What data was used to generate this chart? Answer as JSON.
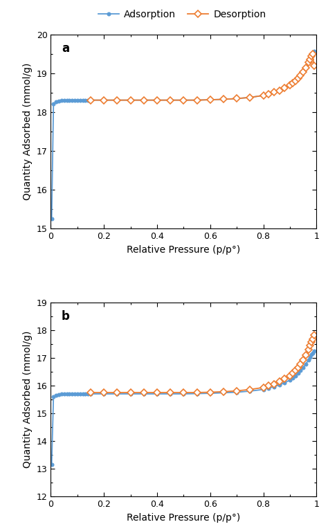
{
  "legend_labels": [
    "Adsorption",
    "Desorption"
  ],
  "adsorption_color": "#5b9bd5",
  "desorption_color": "#ed7d31",
  "ylabel": "Quantity Adsorbed (mmol/g)",
  "xlabel": "Relative Pressure (p/p°)",
  "panel_a_label": "a",
  "panel_a_ads_x": [
    0.003,
    0.01,
    0.02,
    0.03,
    0.04,
    0.05,
    0.06,
    0.07,
    0.08,
    0.09,
    0.1,
    0.11,
    0.12,
    0.13,
    0.14,
    0.15,
    0.2,
    0.25,
    0.3,
    0.35,
    0.4,
    0.45,
    0.5,
    0.55,
    0.6,
    0.65,
    0.7,
    0.75,
    0.8,
    0.82,
    0.84,
    0.86,
    0.88,
    0.9,
    0.91,
    0.92,
    0.93,
    0.94,
    0.95,
    0.96,
    0.97,
    0.975,
    0.98,
    0.985,
    0.99
  ],
  "panel_a_ads_y": [
    15.26,
    18.21,
    18.27,
    18.29,
    18.3,
    18.31,
    18.31,
    18.31,
    18.31,
    18.31,
    18.31,
    18.31,
    18.31,
    18.31,
    18.31,
    18.31,
    18.31,
    18.31,
    18.31,
    18.31,
    18.31,
    18.31,
    18.31,
    18.31,
    18.32,
    18.33,
    18.35,
    18.38,
    18.43,
    18.47,
    18.51,
    18.56,
    18.62,
    18.7,
    18.75,
    18.8,
    18.87,
    18.95,
    19.03,
    19.14,
    19.28,
    19.36,
    19.44,
    19.5,
    19.57
  ],
  "panel_a_des_x": [
    0.15,
    0.2,
    0.25,
    0.3,
    0.35,
    0.4,
    0.45,
    0.5,
    0.55,
    0.6,
    0.65,
    0.7,
    0.75,
    0.8,
    0.82,
    0.84,
    0.86,
    0.88,
    0.9,
    0.91,
    0.92,
    0.93,
    0.94,
    0.95,
    0.96,
    0.97,
    0.975,
    0.98,
    0.985,
    0.99
  ],
  "panel_a_des_y": [
    18.31,
    18.31,
    18.31,
    18.31,
    18.31,
    18.31,
    18.31,
    18.31,
    18.31,
    18.32,
    18.33,
    18.35,
    18.38,
    18.43,
    18.47,
    18.51,
    18.56,
    18.62,
    18.7,
    18.75,
    18.8,
    18.87,
    18.95,
    19.03,
    19.14,
    19.28,
    19.36,
    19.44,
    19.5,
    19.2
  ],
  "panel_a_ylim": [
    15.0,
    20.0
  ],
  "panel_a_yticks": [
    15,
    16,
    17,
    18,
    19,
    20
  ],
  "panel_b_label": "b",
  "panel_b_ads_x": [
    0.003,
    0.01,
    0.02,
    0.03,
    0.04,
    0.05,
    0.06,
    0.07,
    0.08,
    0.09,
    0.1,
    0.11,
    0.12,
    0.13,
    0.14,
    0.15,
    0.2,
    0.25,
    0.3,
    0.35,
    0.4,
    0.45,
    0.5,
    0.55,
    0.6,
    0.65,
    0.7,
    0.75,
    0.8,
    0.82,
    0.84,
    0.86,
    0.88,
    0.9,
    0.91,
    0.92,
    0.93,
    0.94,
    0.95,
    0.96,
    0.97,
    0.975,
    0.98,
    0.985,
    0.99
  ],
  "panel_b_ads_y": [
    13.15,
    15.6,
    15.66,
    15.68,
    15.69,
    15.7,
    15.7,
    15.7,
    15.7,
    15.7,
    15.7,
    15.7,
    15.7,
    15.7,
    15.7,
    15.7,
    15.7,
    15.7,
    15.7,
    15.7,
    15.7,
    15.7,
    15.7,
    15.71,
    15.72,
    15.74,
    15.76,
    15.8,
    15.86,
    15.91,
    15.96,
    16.02,
    16.1,
    16.2,
    16.27,
    16.35,
    16.44,
    16.54,
    16.65,
    16.78,
    16.93,
    17.02,
    17.12,
    17.18,
    17.25
  ],
  "panel_b_des_x": [
    0.15,
    0.2,
    0.25,
    0.3,
    0.35,
    0.4,
    0.45,
    0.5,
    0.55,
    0.6,
    0.65,
    0.7,
    0.75,
    0.8,
    0.82,
    0.84,
    0.86,
    0.88,
    0.9,
    0.91,
    0.92,
    0.93,
    0.94,
    0.95,
    0.96,
    0.97,
    0.975,
    0.98,
    0.985,
    0.99
  ],
  "panel_b_des_y": [
    15.75,
    15.75,
    15.75,
    15.75,
    15.75,
    15.75,
    15.75,
    15.75,
    15.75,
    15.76,
    15.78,
    15.81,
    15.86,
    15.93,
    15.99,
    16.06,
    16.14,
    16.24,
    16.36,
    16.44,
    16.54,
    16.65,
    16.78,
    16.93,
    17.1,
    17.3,
    17.45,
    17.57,
    17.68,
    17.82
  ],
  "panel_b_ylim": [
    12.0,
    19.0
  ],
  "panel_b_yticks": [
    12,
    13,
    14,
    15,
    16,
    17,
    18,
    19
  ],
  "xlim": [
    0.0,
    1.0
  ],
  "xticks": [
    0.0,
    0.2,
    0.4,
    0.6,
    0.8,
    1.0
  ],
  "label_fontsize": 10,
  "tick_fontsize": 9,
  "legend_fontsize": 10,
  "panel_label_fontsize": 12
}
